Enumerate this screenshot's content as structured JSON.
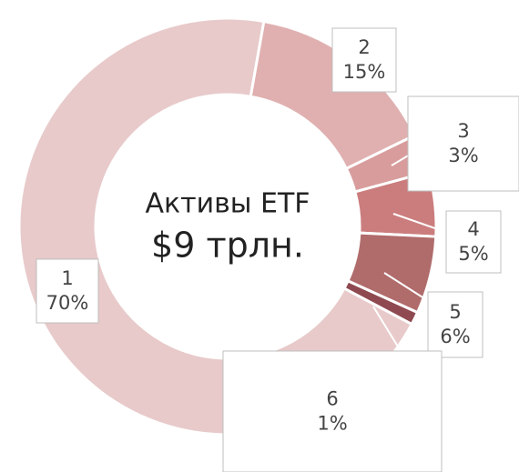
{
  "chart_data": {
    "type": "donut",
    "title": "Активы ETF",
    "subtitle": "$9 трлн.",
    "categories": [
      "1",
      "2",
      "3",
      "4",
      "5",
      "6"
    ],
    "values": [
      70,
      15,
      3,
      5,
      6,
      1
    ],
    "value_labels": [
      "70%",
      "15%",
      "3%",
      "5%",
      "6%",
      "1%"
    ],
    "colors": [
      "#e8caca",
      "#e0b0b0",
      "#d89c9c",
      "#cb7d7d",
      "#b06b6b",
      "#8e4a50"
    ]
  }
}
